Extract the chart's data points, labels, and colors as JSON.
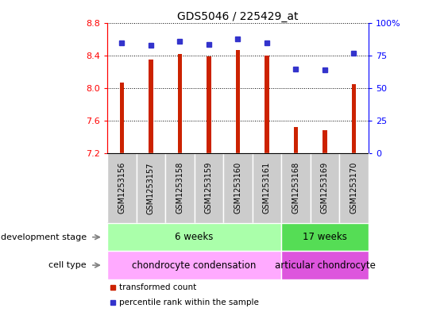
{
  "title": "GDS5046 / 225429_at",
  "samples": [
    "GSM1253156",
    "GSM1253157",
    "GSM1253158",
    "GSM1253159",
    "GSM1253160",
    "GSM1253161",
    "GSM1253168",
    "GSM1253169",
    "GSM1253170"
  ],
  "bar_values": [
    8.07,
    8.35,
    8.42,
    8.39,
    8.47,
    8.4,
    7.52,
    7.48,
    8.05
  ],
  "percentile_values": [
    85,
    83,
    86,
    84,
    88,
    85,
    65,
    64,
    77
  ],
  "ylim": [
    7.2,
    8.8
  ],
  "yticks": [
    7.2,
    7.6,
    8.0,
    8.4,
    8.8
  ],
  "right_yticks": [
    0,
    25,
    50,
    75,
    100
  ],
  "bar_color": "#cc2200",
  "dot_color": "#3333cc",
  "bar_bottom": 7.2,
  "bar_width": 0.15,
  "development_stage_groups": [
    {
      "label": "6 weeks",
      "start": 0,
      "end": 6,
      "color": "#aaffaa"
    },
    {
      "label": "17 weeks",
      "start": 6,
      "end": 9,
      "color": "#55dd55"
    }
  ],
  "cell_type_groups": [
    {
      "label": "chondrocyte condensation",
      "start": 0,
      "end": 6,
      "color": "#ffaaff"
    },
    {
      "label": "articular chondrocyte",
      "start": 6,
      "end": 9,
      "color": "#dd55dd"
    }
  ],
  "legend_items": [
    {
      "label": "transformed count",
      "color": "#cc2200"
    },
    {
      "label": "percentile rank within the sample",
      "color": "#3333cc"
    }
  ],
  "dev_stage_label": "development stage",
  "cell_type_label": "cell type",
  "sample_box_color": "#cccccc",
  "sample_box_edge": "#aaaaaa"
}
